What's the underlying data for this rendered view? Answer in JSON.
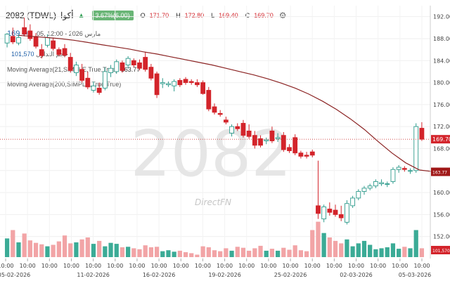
{
  "header": {
    "symbol": "2082 (TDWL)",
    "name": "أكوا",
    "change": "3.67%(6.00)",
    "o_label": "O",
    "o_value": "171.70",
    "h_label": "H",
    "h_value": "172.80",
    "l_label": "L",
    "l_value": "169.40",
    "c_label": "C",
    "c_value": "169.70"
  },
  "overlay": {
    "last_price": "169.70",
    "time_label": "مارس 2026 - 12:00 ,05",
    "volume_label": "حجم التداول",
    "volume_value": "101,570",
    "ma21_label": "Moving Average(21,SIMPLE,True,True)",
    "ma21_value": "163.77",
    "ma200_label": "Moving Average(200,SIMPLE,True,True)"
  },
  "watermark": {
    "symbol": "2082",
    "brand": "DirectFN"
  },
  "colors": {
    "up": "#2e9b8c",
    "down": "#d3242b",
    "ma": "#8b2323",
    "vol_up": "#3bab96",
    "vol_down": "#f2a4a6"
  },
  "chart_data": {
    "type": "candlestick",
    "price_ylim": [
      148,
      194
    ],
    "y_ticks": [
      "192.00",
      "188.00",
      "184.00",
      "180.00",
      "176.00",
      "172.00",
      "168.00",
      "164.00",
      "160.00",
      "156.00",
      "152.00"
    ],
    "y_tick_values": [
      192,
      188,
      184,
      180,
      176,
      172,
      168,
      164,
      160,
      156,
      152
    ],
    "last_price_label": "169.70",
    "last_price_value": 169.7,
    "ma_label": "163.77",
    "ma_value": 163.77,
    "volume_label": "101,570",
    "x_time_labels": [
      "10:00",
      "10:00",
      "10:00",
      "10:00",
      "10:00",
      "10:00",
      "10:00",
      "10:00",
      "10:00",
      "10:00",
      "10:00",
      "10:00",
      "10:00",
      "10:00",
      "10:00",
      "10:00",
      "10:00",
      "10:00",
      "10:00",
      "10:00"
    ],
    "x_date_labels": [
      "05-02-2026",
      "11-02-2026",
      "16-02-2026",
      "19-02-2026",
      "25-02-2026",
      "02-03-2026",
      "05-03-2026"
    ],
    "date_label_slots": [
      0,
      4,
      7,
      10,
      13,
      16,
      19
    ],
    "candles": [
      {
        "o": 187.2,
        "h": 189.0,
        "l": 186.4,
        "c": 188.8,
        "v": 0.38
      },
      {
        "o": 188.4,
        "h": 190.0,
        "l": 187.0,
        "c": 187.4,
        "v": 0.55
      },
      {
        "o": 187.2,
        "h": 188.8,
        "l": 186.8,
        "c": 188.2,
        "v": 0.3
      },
      {
        "o": 190.0,
        "h": 191.8,
        "l": 188.4,
        "c": 188.8,
        "v": 0.48
      },
      {
        "o": 189.4,
        "h": 190.6,
        "l": 187.6,
        "c": 188.0,
        "v": 0.34
      },
      {
        "o": 188.4,
        "h": 189.0,
        "l": 186.2,
        "c": 186.6,
        "v": 0.29
      },
      {
        "o": 186.0,
        "h": 187.0,
        "l": 184.4,
        "c": 184.9,
        "v": 0.26
      },
      {
        "o": 186.8,
        "h": 188.8,
        "l": 186.4,
        "c": 188.2,
        "v": 0.22
      },
      {
        "o": 187.6,
        "h": 188.2,
        "l": 185.8,
        "c": 186.2,
        "v": 0.25
      },
      {
        "o": 186.0,
        "h": 186.4,
        "l": 184.8,
        "c": 185.1,
        "v": 0.32
      },
      {
        "o": 186.2,
        "h": 187.0,
        "l": 184.6,
        "c": 185.0,
        "v": 0.44
      },
      {
        "o": 184.6,
        "h": 185.4,
        "l": 181.8,
        "c": 182.2,
        "v": 0.28
      },
      {
        "o": 181.8,
        "h": 183.8,
        "l": 181.2,
        "c": 183.2,
        "v": 0.3
      },
      {
        "o": 182.4,
        "h": 183.4,
        "l": 180.0,
        "c": 180.4,
        "v": 0.36
      },
      {
        "o": 180.8,
        "h": 182.0,
        "l": 178.8,
        "c": 179.2,
        "v": 0.4
      },
      {
        "o": 178.6,
        "h": 180.2,
        "l": 178.2,
        "c": 179.4,
        "v": 0.27
      },
      {
        "o": 179.0,
        "h": 180.0,
        "l": 177.8,
        "c": 178.2,
        "v": 0.33
      },
      {
        "o": 179.0,
        "h": 182.8,
        "l": 178.6,
        "c": 182.0,
        "v": 0.22
      },
      {
        "o": 181.8,
        "h": 183.2,
        "l": 181.0,
        "c": 182.6,
        "v": 0.29
      },
      {
        "o": 182.0,
        "h": 184.2,
        "l": 181.6,
        "c": 183.8,
        "v": 0.27
      },
      {
        "o": 183.6,
        "h": 184.0,
        "l": 181.8,
        "c": 182.2,
        "v": 0.2
      },
      {
        "o": 183.2,
        "h": 184.8,
        "l": 182.6,
        "c": 184.4,
        "v": 0.21
      },
      {
        "o": 184.0,
        "h": 184.4,
        "l": 182.8,
        "c": 183.2,
        "v": 0.18
      },
      {
        "o": 183.6,
        "h": 184.2,
        "l": 182.2,
        "c": 182.6,
        "v": 0.16
      },
      {
        "o": 184.6,
        "h": 185.6,
        "l": 182.0,
        "c": 182.4,
        "v": 0.24
      },
      {
        "o": 182.8,
        "h": 183.4,
        "l": 180.4,
        "c": 180.8,
        "v": 0.2
      },
      {
        "o": 181.6,
        "h": 182.0,
        "l": 177.2,
        "c": 177.8,
        "v": 0.21
      },
      {
        "o": 179.8,
        "h": 180.8,
        "l": 179.0,
        "c": 180.0,
        "v": 0.12
      },
      {
        "o": 179.6,
        "h": 180.2,
        "l": 179.2,
        "c": 179.8,
        "v": 0.14
      },
      {
        "o": 179.4,
        "h": 180.6,
        "l": 178.4,
        "c": 180.2,
        "v": 0.11
      },
      {
        "o": 180.4,
        "h": 180.8,
        "l": 179.2,
        "c": 179.6,
        "v": 0.13
      },
      {
        "o": 180.6,
        "h": 181.0,
        "l": 179.6,
        "c": 180.0,
        "v": 0.1
      },
      {
        "o": 180.2,
        "h": 180.6,
        "l": 179.6,
        "c": 180.0,
        "v": 0.08
      },
      {
        "o": 180.0,
        "h": 180.6,
        "l": 179.2,
        "c": 179.6,
        "v": 0.05
      },
      {
        "o": 180.0,
        "h": 180.4,
        "l": 177.8,
        "c": 178.0,
        "v": 0.22
      },
      {
        "o": 178.6,
        "h": 179.2,
        "l": 174.8,
        "c": 175.2,
        "v": 0.2
      },
      {
        "o": 175.6,
        "h": 176.2,
        "l": 174.2,
        "c": 174.6,
        "v": 0.14
      },
      {
        "o": 174.4,
        "h": 175.0,
        "l": 173.8,
        "c": 174.2,
        "v": 0.12
      },
      {
        "o": 173.2,
        "h": 173.8,
        "l": 172.4,
        "c": 172.8,
        "v": 0.18
      },
      {
        "o": 170.8,
        "h": 172.4,
        "l": 170.2,
        "c": 172.0,
        "v": 0.13
      },
      {
        "o": 172.0,
        "h": 172.6,
        "l": 171.2,
        "c": 171.6,
        "v": 0.21
      },
      {
        "o": 172.6,
        "h": 173.2,
        "l": 170.0,
        "c": 170.4,
        "v": 0.19
      },
      {
        "o": 171.2,
        "h": 172.4,
        "l": 169.8,
        "c": 170.2,
        "v": 0.13
      },
      {
        "o": 170.4,
        "h": 171.2,
        "l": 168.0,
        "c": 168.6,
        "v": 0.18
      },
      {
        "o": 169.8,
        "h": 170.4,
        "l": 168.2,
        "c": 168.6,
        "v": 0.23
      },
      {
        "o": 169.4,
        "h": 170.0,
        "l": 168.8,
        "c": 169.6,
        "v": 0.13
      },
      {
        "o": 171.2,
        "h": 172.0,
        "l": 169.0,
        "c": 169.4,
        "v": 0.17
      },
      {
        "o": 169.8,
        "h": 170.8,
        "l": 169.2,
        "c": 170.0,
        "v": 0.13
      },
      {
        "o": 170.4,
        "h": 171.0,
        "l": 167.4,
        "c": 167.8,
        "v": 0.19
      },
      {
        "o": 168.2,
        "h": 168.8,
        "l": 167.2,
        "c": 167.6,
        "v": 0.15
      },
      {
        "o": 170.0,
        "h": 170.6,
        "l": 166.8,
        "c": 167.2,
        "v": 0.24
      },
      {
        "o": 167.2,
        "h": 167.6,
        "l": 166.2,
        "c": 166.6,
        "v": 0.14
      },
      {
        "o": 166.8,
        "h": 167.4,
        "l": 166.2,
        "c": 166.6,
        "v": 0.12
      },
      {
        "o": 167.4,
        "h": 167.8,
        "l": 166.4,
        "c": 166.8,
        "v": 0.55
      },
      {
        "o": 157.6,
        "h": 165.8,
        "l": 155.2,
        "c": 156.2,
        "v": 0.72
      },
      {
        "o": 155.2,
        "h": 157.8,
        "l": 154.6,
        "c": 157.4,
        "v": 0.49
      },
      {
        "o": 157.0,
        "h": 158.2,
        "l": 155.8,
        "c": 156.4,
        "v": 0.4
      },
      {
        "o": 156.8,
        "h": 157.8,
        "l": 155.6,
        "c": 156.0,
        "v": 0.33
      },
      {
        "o": 156.0,
        "h": 157.6,
        "l": 154.8,
        "c": 155.4,
        "v": 0.28
      },
      {
        "o": 154.6,
        "h": 158.6,
        "l": 154.2,
        "c": 158.0,
        "v": 0.36
      },
      {
        "o": 157.6,
        "h": 159.4,
        "l": 157.2,
        "c": 159.0,
        "v": 0.22
      },
      {
        "o": 159.0,
        "h": 160.6,
        "l": 158.6,
        "c": 160.2,
        "v": 0.28
      },
      {
        "o": 160.2,
        "h": 161.2,
        "l": 159.6,
        "c": 160.8,
        "v": 0.33
      },
      {
        "o": 160.8,
        "h": 161.6,
        "l": 160.4,
        "c": 161.2,
        "v": 0.25
      },
      {
        "o": 161.2,
        "h": 162.4,
        "l": 160.8,
        "c": 162.0,
        "v": 0.16
      },
      {
        "o": 161.6,
        "h": 162.4,
        "l": 161.2,
        "c": 161.8,
        "v": 0.18
      },
      {
        "o": 161.6,
        "h": 162.0,
        "l": 161.0,
        "c": 161.6,
        "v": 0.2
      },
      {
        "o": 162.0,
        "h": 164.6,
        "l": 161.6,
        "c": 164.2,
        "v": 0.28
      },
      {
        "o": 164.2,
        "h": 165.0,
        "l": 163.6,
        "c": 164.6,
        "v": 0.17
      },
      {
        "o": 164.4,
        "h": 164.8,
        "l": 163.8,
        "c": 164.2,
        "v": 0.21
      },
      {
        "o": 164.0,
        "h": 164.4,
        "l": 163.4,
        "c": 164.0,
        "v": 0.18
      },
      {
        "o": 164.0,
        "h": 172.6,
        "l": 163.6,
        "c": 172.0,
        "v": 0.55
      },
      {
        "o": 171.7,
        "h": 172.8,
        "l": 169.4,
        "c": 169.7,
        "v": 0.18
      }
    ],
    "ma": [
      188.6,
      188.4,
      188.2,
      188.0,
      187.7,
      187.3,
      186.9,
      186.5,
      186.1,
      185.6,
      185.2,
      184.7,
      184.2,
      183.7,
      183.2,
      182.6,
      182.0,
      181.4,
      180.7,
      179.9,
      179.0,
      177.9,
      176.6,
      175.1,
      173.4,
      171.5,
      169.3,
      167.2,
      165.4,
      164.1,
      163.8
    ],
    "ma_start_slot": 2,
    "ma_step": 2.4
  }
}
